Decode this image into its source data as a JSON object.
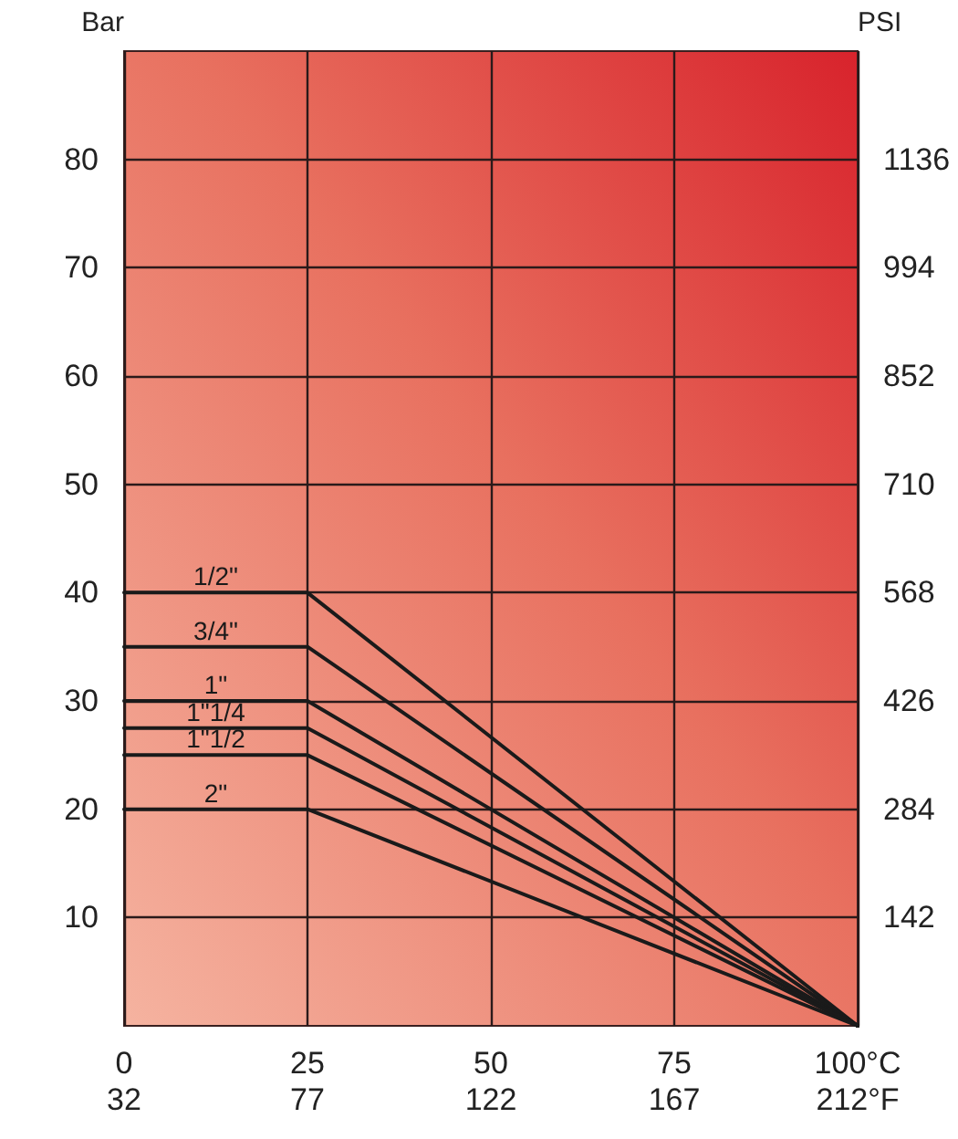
{
  "chart_data": {
    "type": "line",
    "ylabel": "Bar",
    "y2label": "PSI",
    "series": [
      {
        "name": "1/2\"",
        "color": "#1a1a1a",
        "x": [
          0,
          25,
          100
        ],
        "values": [
          40,
          40,
          0
        ]
      },
      {
        "name": "3/4\"",
        "color": "#1a1a1a",
        "x": [
          0,
          25,
          100
        ],
        "values": [
          35,
          35,
          0
        ]
      },
      {
        "name": "1\"",
        "color": "#1a1a1a",
        "x": [
          0,
          25,
          100
        ],
        "values": [
          30,
          30,
          0
        ]
      },
      {
        "name": "1\"1/4",
        "color": "#1a1a1a",
        "x": [
          0,
          25,
          100
        ],
        "values": [
          27.5,
          27.5,
          0
        ]
      },
      {
        "name": "1\"1/2",
        "color": "#1a1a1a",
        "x": [
          0,
          25,
          100
        ],
        "values": [
          25,
          25,
          0
        ]
      },
      {
        "name": "2\"",
        "color": "#1a1a1a",
        "x": [
          0,
          25,
          100
        ],
        "values": [
          20,
          20,
          0
        ]
      }
    ],
    "xlim": [
      0,
      100
    ],
    "xticks": [
      0,
      25,
      50,
      75,
      {
        "value": 100,
        "label": "100°C"
      }
    ],
    "x2lim": [
      32,
      212
    ],
    "x2ticks": [
      32,
      77,
      122,
      167,
      {
        "value": 212,
        "label": "212°F"
      }
    ],
    "ylim": [
      0,
      90
    ],
    "yticks": [
      10,
      20,
      30,
      40,
      50,
      60,
      70,
      80
    ],
    "y2lim": [
      0,
      1278
    ],
    "y2ticks": [
      142,
      284,
      426,
      568,
      710,
      852,
      994,
      1136
    ],
    "grid": true,
    "marker": "none",
    "line_style": "solid"
  }
}
